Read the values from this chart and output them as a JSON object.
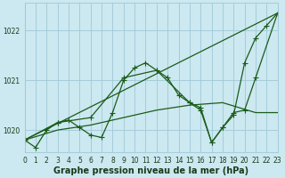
{
  "title": "Graphe pression niveau de la mer (hPa)",
  "bg_color": "#cce8f0",
  "grid_color": "#a0c8d8",
  "line_color": "#1a5c1a",
  "xlim": [
    0,
    23
  ],
  "ylim": [
    1019.55,
    1022.55
  ],
  "yticks": [
    1020,
    1021,
    1022
  ],
  "xticks": [
    0,
    1,
    2,
    3,
    4,
    5,
    6,
    7,
    8,
    9,
    10,
    11,
    12,
    13,
    14,
    15,
    16,
    17,
    18,
    19,
    20,
    21,
    22,
    23
  ],
  "series": [
    {
      "x": [
        0,
        1,
        2,
        3,
        4,
        5,
        6,
        7,
        8,
        9,
        10,
        11,
        12,
        13,
        14,
        15,
        16,
        17,
        18,
        19,
        20,
        21,
        22,
        23
      ],
      "y": [
        1019.8,
        1019.65,
        1020.0,
        1020.15,
        1020.2,
        1020.05,
        1019.9,
        1019.85,
        1020.35,
        1021.0,
        1021.25,
        1021.35,
        1021.2,
        1021.05,
        1020.7,
        1020.55,
        1020.4,
        1019.75,
        1020.05,
        1020.3,
        1021.35,
        1021.85,
        1022.1,
        1022.35
      ],
      "marker": "+",
      "marker_size": 4,
      "lw": 0.9
    },
    {
      "x": [
        0,
        23
      ],
      "y": [
        1019.8,
        1022.35
      ],
      "marker": null,
      "marker_size": 0,
      "lw": 0.9
    },
    {
      "x": [
        0,
        3,
        6,
        9,
        12,
        15,
        16,
        17,
        18,
        19,
        20,
        21,
        23
      ],
      "y": [
        1019.8,
        1020.15,
        1020.25,
        1021.05,
        1021.2,
        1020.55,
        1020.45,
        1019.75,
        1020.05,
        1020.35,
        1020.4,
        1021.05,
        1022.35
      ],
      "marker": "+",
      "marker_size": 4,
      "lw": 0.9
    },
    {
      "x": [
        0,
        3,
        6,
        9,
        12,
        15,
        18,
        21,
        23
      ],
      "y": [
        1019.8,
        1020.0,
        1020.1,
        1020.25,
        1020.4,
        1020.5,
        1020.55,
        1020.35,
        1020.35
      ],
      "marker": null,
      "marker_size": 0,
      "lw": 0.9
    }
  ],
  "tick_fontsize": 5.5,
  "label_fontsize": 7,
  "tick_color": "#1a3a1a",
  "xlabel_bold": true
}
